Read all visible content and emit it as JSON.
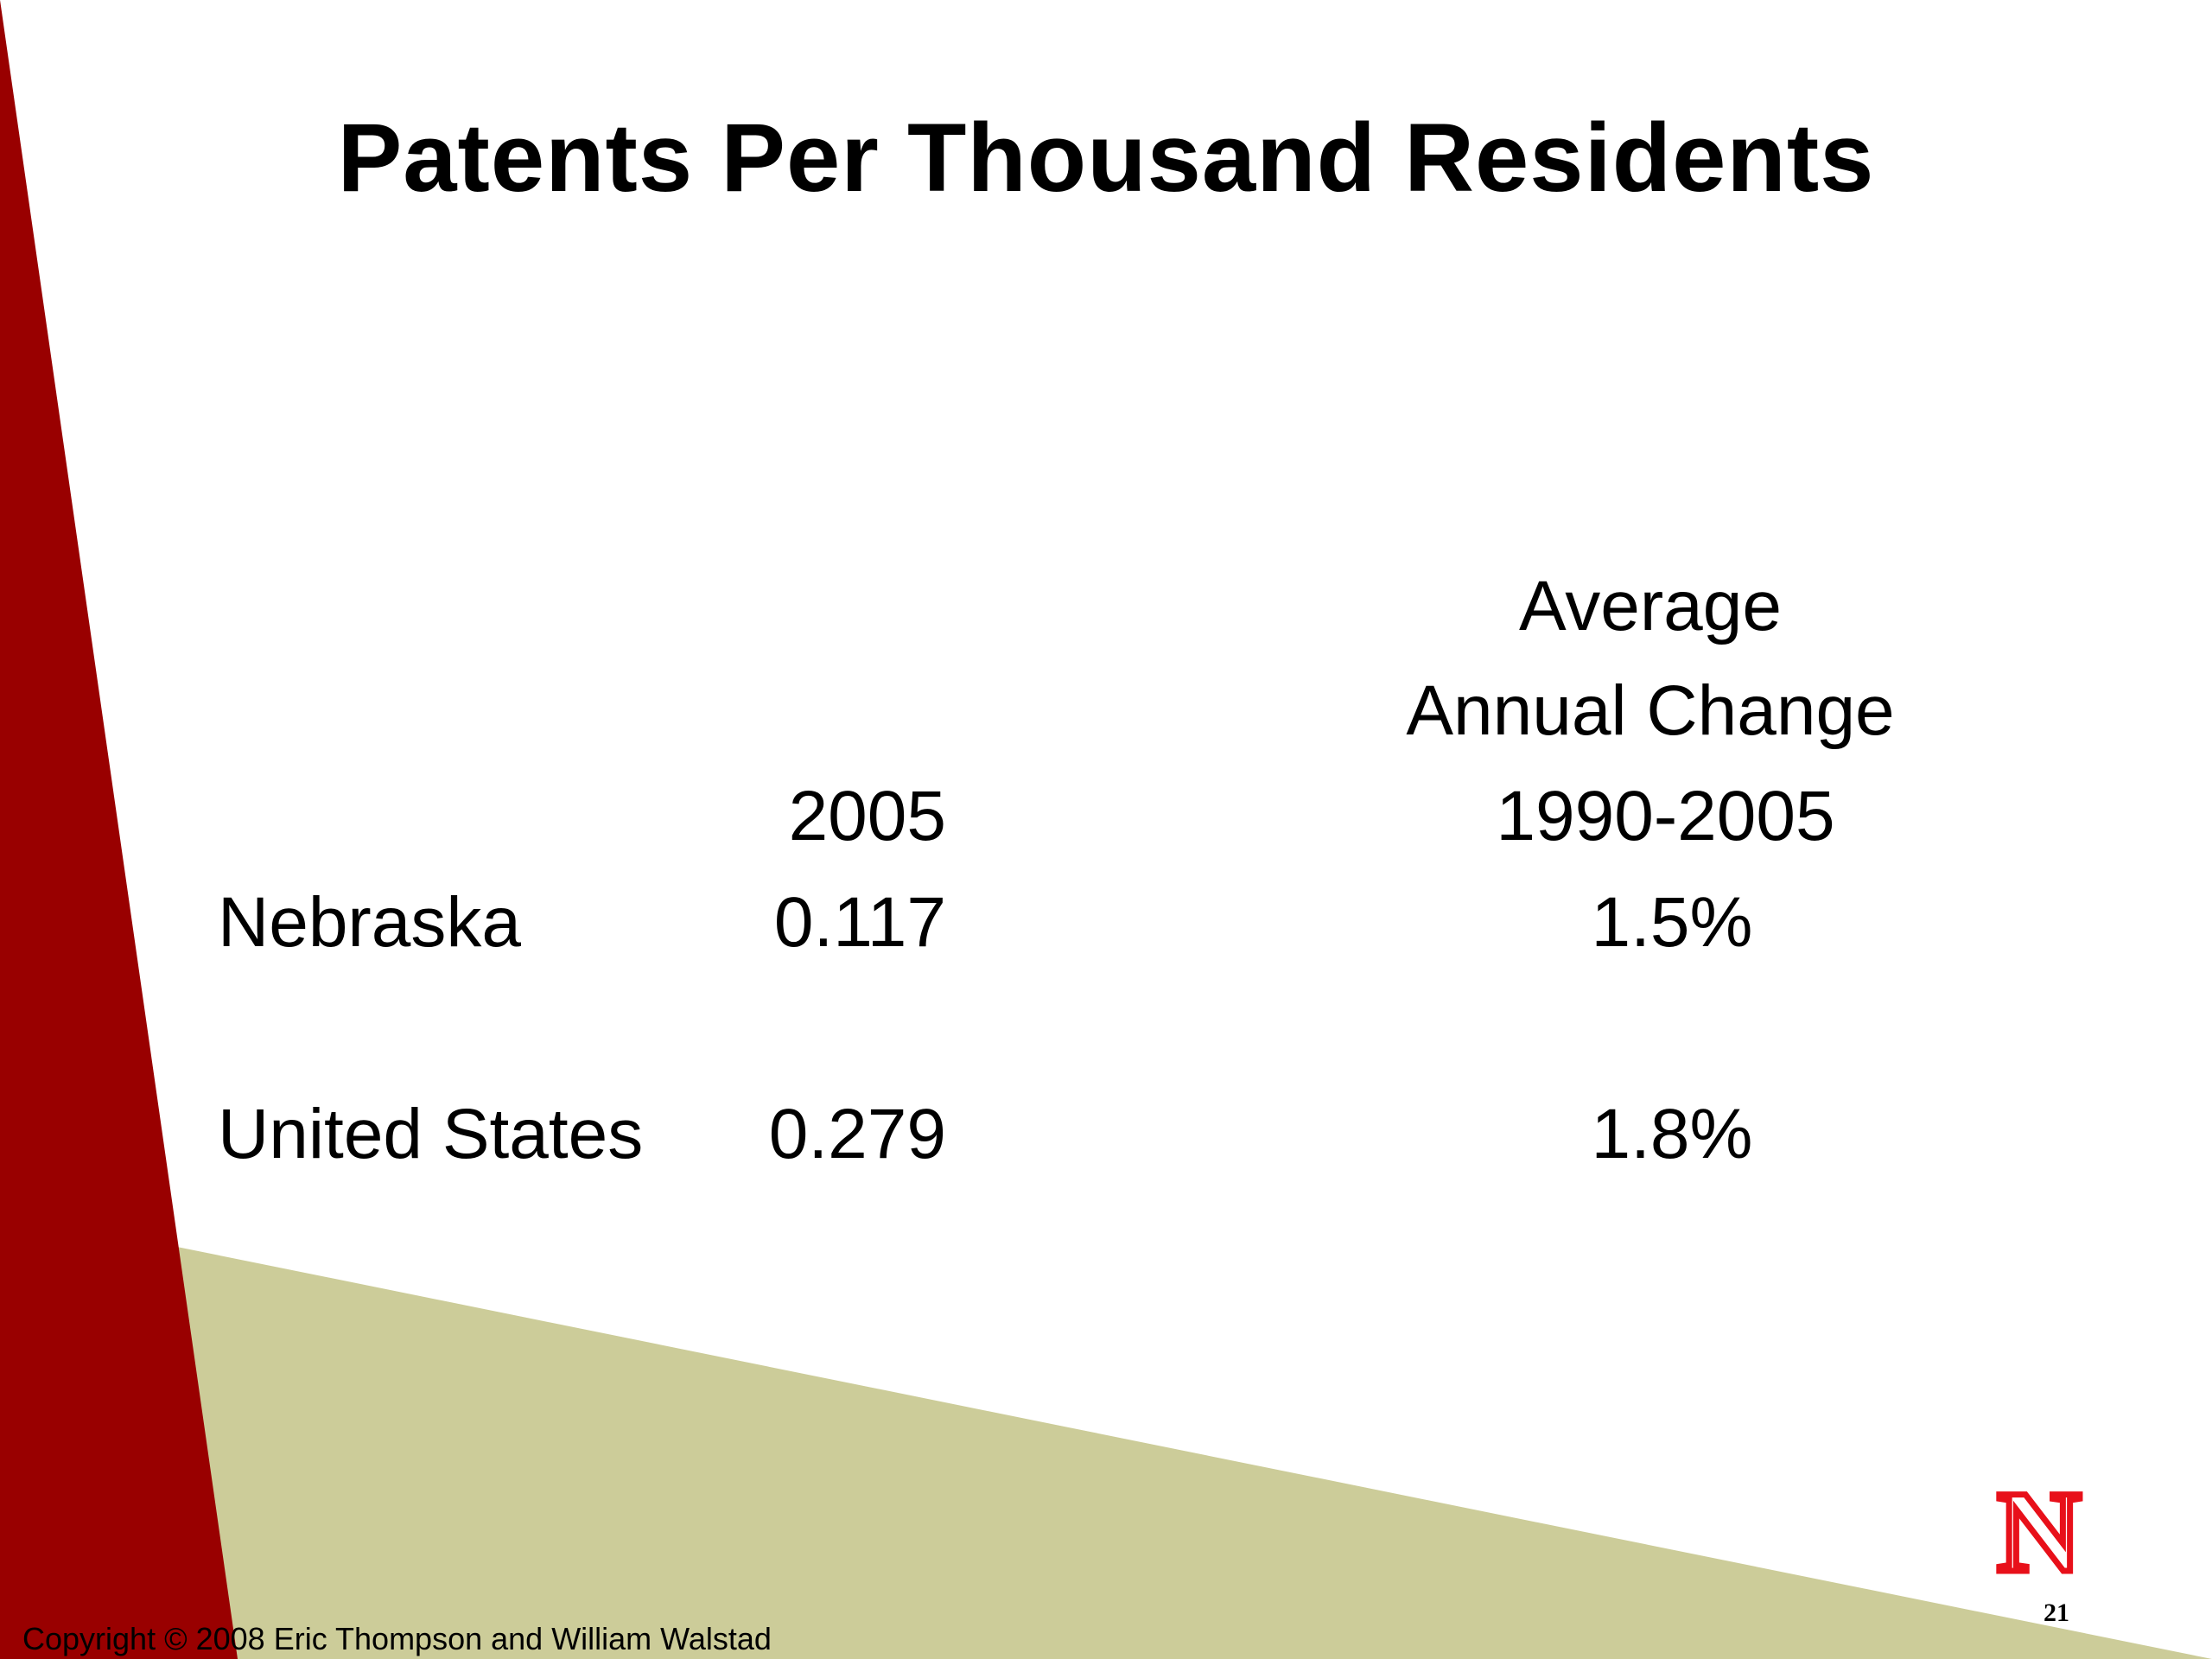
{
  "slide": {
    "title": "Patents Per Thousand Residents",
    "colors": {
      "red_band": "#990000",
      "olive_band": "#cccc99",
      "background": "#ffffff",
      "logo_red": "#e8101a"
    },
    "table": {
      "headers": {
        "col1": "2005",
        "col2_line1": "Average",
        "col2_line2": "Annual Change",
        "col2_line3": "1990-2005"
      },
      "rows": [
        {
          "label": "Nebraska",
          "value_2005": "0.117",
          "annual_change": "1.5%"
        },
        {
          "label": "United States",
          "value_2005": "0.279",
          "annual_change": "1.8%"
        }
      ]
    },
    "footer": {
      "copyright": "Copyright © 2008 Eric Thompson and William Walstad",
      "page_number": "21"
    },
    "logo": {
      "icon": "nebraska-n-logo",
      "text": "N"
    }
  }
}
